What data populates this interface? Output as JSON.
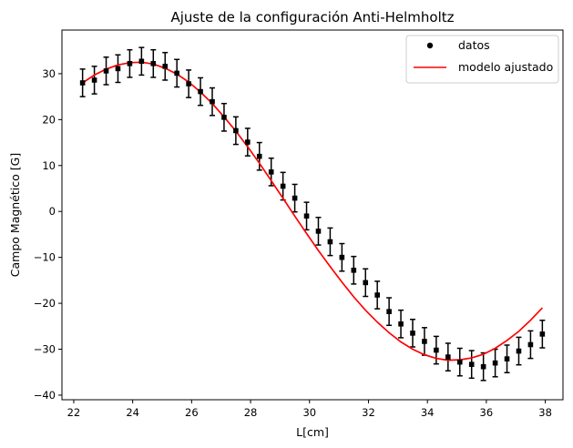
{
  "chart_data": {
    "type": "scatter",
    "title": "Ajuste de la configuración Anti-Helmholtz",
    "xlabel": "L[cm]",
    "ylabel": "Campo Magnético [G]",
    "xlim": [
      21.6,
      38.6
    ],
    "ylim": [
      -41,
      39.5
    ],
    "xticks": [
      22,
      24,
      26,
      28,
      30,
      32,
      34,
      36,
      38
    ],
    "xtick_labels": [
      "22",
      "24",
      "26",
      "28",
      "30",
      "32",
      "34",
      "36",
      "38"
    ],
    "yticks": [
      -40,
      -30,
      -20,
      -10,
      0,
      10,
      20,
      30
    ],
    "ytick_labels": [
      "−40",
      "−30",
      "−20",
      "−10",
      "0",
      "10",
      "20",
      "30"
    ],
    "grid": false,
    "legend": {
      "position": "top-right",
      "entries": [
        "datos",
        "modelo ajustado"
      ]
    },
    "series": [
      {
        "name": "datos",
        "style": "points-with-errorbars",
        "color": "#000000",
        "yerr": 3,
        "points": [
          [
            22.3,
            28.0
          ],
          [
            22.7,
            28.6
          ],
          [
            23.1,
            30.6
          ],
          [
            23.5,
            31.1
          ],
          [
            23.9,
            32.2
          ],
          [
            24.3,
            32.7
          ],
          [
            24.7,
            32.2
          ],
          [
            25.1,
            31.6
          ],
          [
            25.5,
            30.1
          ],
          [
            25.9,
            27.8
          ],
          [
            26.3,
            26.1
          ],
          [
            26.7,
            23.9
          ],
          [
            27.1,
            20.5
          ],
          [
            27.5,
            17.6
          ],
          [
            27.9,
            15.1
          ],
          [
            28.3,
            12.0
          ],
          [
            28.7,
            8.6
          ],
          [
            29.1,
            5.5
          ],
          [
            29.5,
            2.9
          ],
          [
            29.9,
            -1.0
          ],
          [
            30.3,
            -4.3
          ],
          [
            30.7,
            -6.6
          ],
          [
            31.1,
            -10.0
          ],
          [
            31.5,
            -12.8
          ],
          [
            31.9,
            -15.5
          ],
          [
            32.3,
            -18.2
          ],
          [
            32.7,
            -21.8
          ],
          [
            33.1,
            -24.5
          ],
          [
            33.5,
            -26.5
          ],
          [
            33.9,
            -28.3
          ],
          [
            34.3,
            -30.2
          ],
          [
            34.7,
            -31.7
          ],
          [
            35.1,
            -32.8
          ],
          [
            35.5,
            -33.3
          ],
          [
            35.9,
            -33.8
          ],
          [
            36.3,
            -33.0
          ],
          [
            36.7,
            -32.1
          ],
          [
            37.1,
            -30.4
          ],
          [
            37.5,
            -29.0
          ],
          [
            37.9,
            -26.7
          ]
        ]
      },
      {
        "name": "modelo ajustado",
        "style": "line",
        "color": "#ff0000",
        "x": [
          22.3,
          22.7,
          23.1,
          23.5,
          23.9,
          24.3,
          24.7,
          25.1,
          25.5,
          25.9,
          26.3,
          26.7,
          27.1,
          27.5,
          27.9,
          28.3,
          28.7,
          29.1,
          29.5,
          29.9,
          30.3,
          30.7,
          31.1,
          31.5,
          31.9,
          32.3,
          32.7,
          33.1,
          33.5,
          33.9,
          34.3,
          34.7,
          35.1,
          35.5,
          35.9,
          36.3,
          36.7,
          37.1,
          37.5,
          37.9
        ],
        "y": [
          28.0,
          29.7,
          31.0,
          31.9,
          32.4,
          32.5,
          32.1,
          31.2,
          29.9,
          28.2,
          26.0,
          23.5,
          20.6,
          17.5,
          14.1,
          10.5,
          6.7,
          2.9,
          -1.0,
          -4.8,
          -8.5,
          -12.0,
          -15.4,
          -18.6,
          -21.5,
          -24.1,
          -26.4,
          -28.4,
          -30.0,
          -31.2,
          -32.0,
          -32.4,
          -32.3,
          -31.9,
          -31.1,
          -29.8,
          -28.1,
          -26.1,
          -23.7,
          -21.0
        ]
      }
    ]
  }
}
